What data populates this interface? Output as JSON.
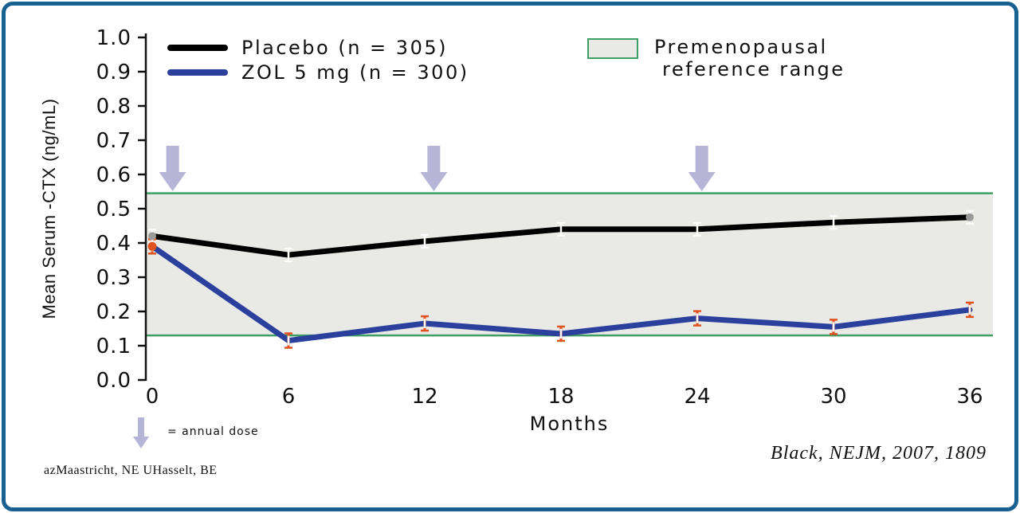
{
  "frame": {
    "border_color": "#186090",
    "background": "#ffffff"
  },
  "chart_data": {
    "type": "line",
    "xlabel": "Months",
    "ylabel": "Mean Serum -CTX (ng/mL)",
    "x": [
      0,
      6,
      12,
      18,
      24,
      30,
      36
    ],
    "xticks": [
      "0",
      "6",
      "12",
      "18",
      "24",
      "30",
      "36"
    ],
    "yticks": [
      "0.0",
      "0.1",
      "0.2",
      "0.3",
      "0.4",
      "0.5",
      "0.6",
      "0.7",
      "0.8",
      "0.9",
      "1.0"
    ],
    "ylim": [
      0.0,
      1.0
    ],
    "series": [
      {
        "name": "Placebo (n = 305)",
        "color": "#000000",
        "values": [
          0.42,
          0.365,
          0.405,
          0.44,
          0.44,
          0.46,
          0.475
        ]
      },
      {
        "name": "ZOL 5 mg (n = 300)",
        "color": "#2b3f9d",
        "values": [
          0.39,
          0.115,
          0.165,
          0.135,
          0.18,
          0.155,
          0.205
        ]
      }
    ],
    "reference_band": {
      "label_line1": "Premenopausal",
      "label_line2": "reference range",
      "from": 0.13,
      "to": 0.545,
      "fill": "#e9e9e6",
      "border_color": "#3f9e63"
    },
    "dose_arrows_months": [
      0.9,
      12.4,
      24.2
    ],
    "arrow_color": "#b7b5d7",
    "error_bar_color": "#e0531f",
    "legend_position": "top"
  },
  "annotations": {
    "dose_note": "= annual dose",
    "citation": "Black, NEJM, 2007, 1809",
    "affiliation": "azMaastricht, NE UHasselt, BE"
  }
}
